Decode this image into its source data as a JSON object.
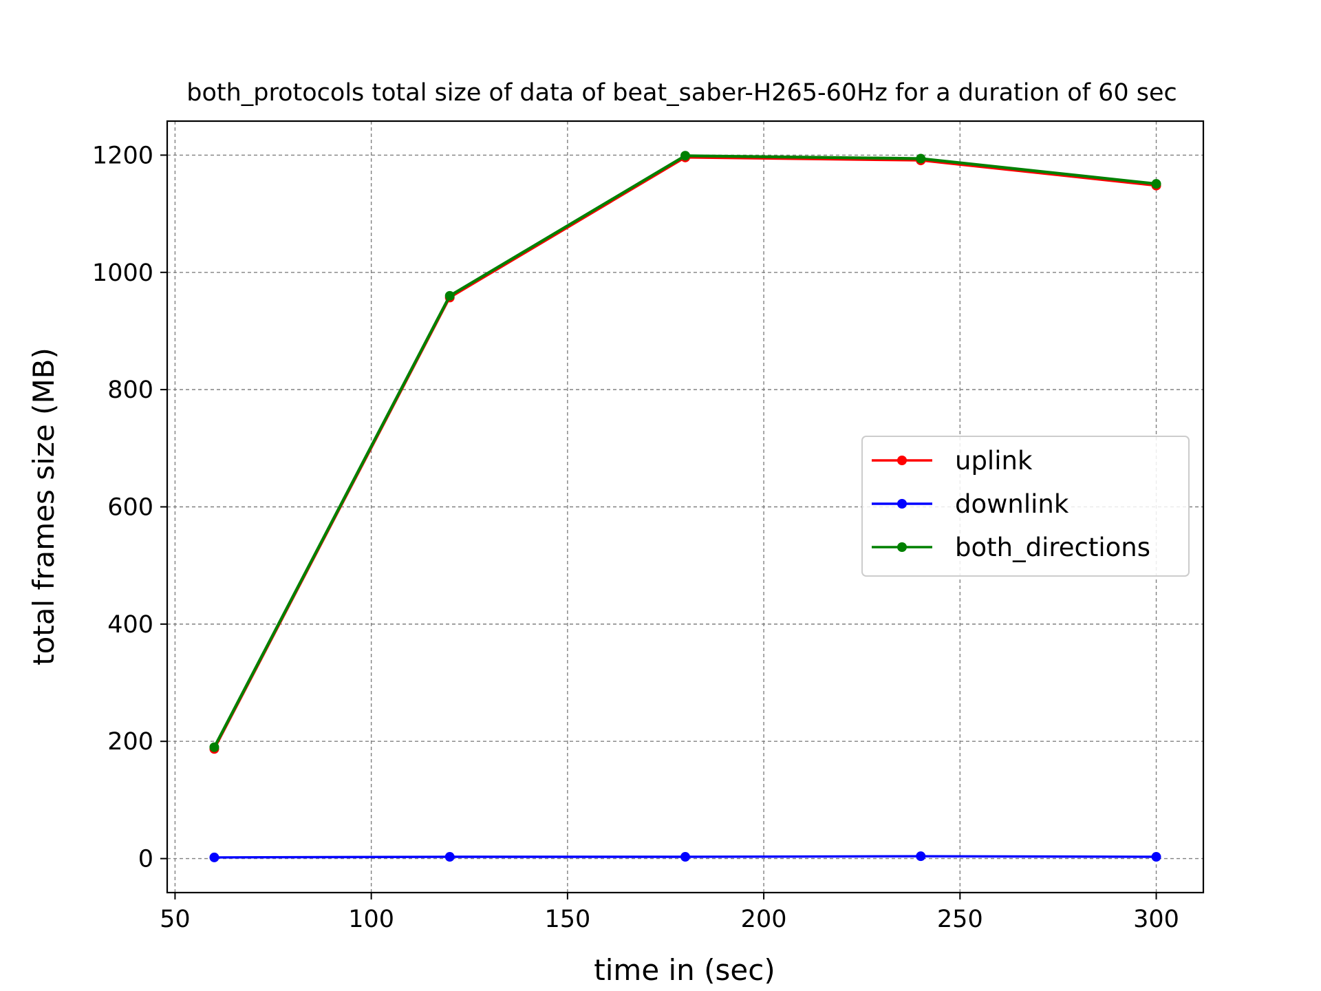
{
  "chart_data": {
    "type": "line",
    "title": "both_protocols total size of data of beat_saber-H265-60Hz for a duration of 60 sec",
    "xlabel": "time in (sec)",
    "ylabel": "total frames size (MB)",
    "x": [
      60,
      120,
      180,
      240,
      300
    ],
    "xlim": [
      48,
      312
    ],
    "ylim": [
      -58,
      1258
    ],
    "xticks": [
      50,
      100,
      150,
      200,
      250,
      300
    ],
    "yticks": [
      0,
      200,
      400,
      600,
      800,
      1000,
      1200
    ],
    "grid": true,
    "legend_position": "center-right",
    "series": [
      {
        "name": "uplink",
        "color": "#ff0000",
        "values": [
          187,
          957,
          1196,
          1191,
          1148
        ]
      },
      {
        "name": "downlink",
        "color": "#0000ff",
        "values": [
          2,
          3,
          3,
          4,
          3
        ]
      },
      {
        "name": "both_directions",
        "color": "#008000",
        "values": [
          190,
          960,
          1199,
          1194,
          1151
        ]
      }
    ]
  }
}
